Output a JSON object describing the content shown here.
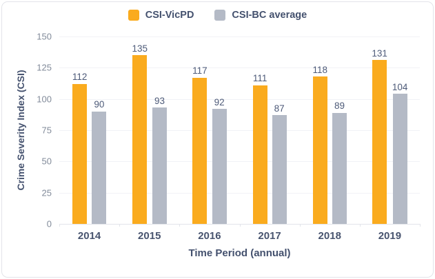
{
  "chart_data": {
    "type": "bar",
    "categories": [
      "2014",
      "2015",
      "2016",
      "2017",
      "2018",
      "2019"
    ],
    "series": [
      {
        "name": "CSI-VicPD",
        "color": "#faab1e",
        "values": [
          112,
          135,
          117,
          111,
          118,
          131
        ]
      },
      {
        "name": "CSI-BC average",
        "color": "#b4bac6",
        "values": [
          90,
          93,
          92,
          87,
          89,
          104
        ]
      }
    ],
    "title": "",
    "xlabel": "Time Period (annual)",
    "ylabel": "Crime Severity Index (CSI)",
    "ylim": [
      0,
      150
    ],
    "yticks": [
      0,
      25,
      50,
      75,
      100,
      125,
      150
    ],
    "grid": true,
    "legend_position": "top-center",
    "value_labels": true
  },
  "colors": {
    "bar_orange": "#faab1e",
    "bar_gray": "#b4bac6",
    "text_primary": "#44516e",
    "text_value": "#4d5a78",
    "text_tick": "#828b9a",
    "gridline": "#f1f2f6",
    "axis_line": "#e2e4ea",
    "card_border": "#e3e4e9",
    "background": "#ffffff"
  }
}
